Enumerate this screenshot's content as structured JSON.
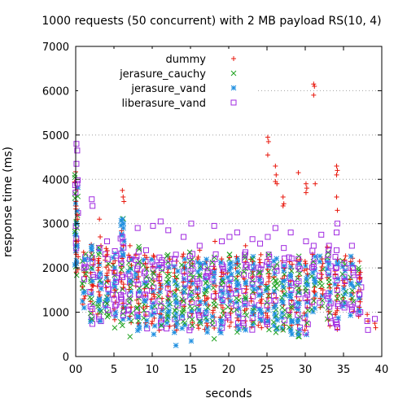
{
  "chart_data": {
    "type": "scatter",
    "title": "1000 requests (50 concurrent) with 2 MB payload RS(10, 4)",
    "xlabel": "seconds",
    "ylabel": "response time (ms)",
    "xlim": [
      0,
      40
    ],
    "ylim": [
      0,
      7000
    ],
    "x_ticks": [
      {
        "value": 0,
        "label": "00"
      },
      {
        "value": 5,
        "label": "5"
      },
      {
        "value": 10,
        "label": "10"
      },
      {
        "value": 15,
        "label": "15"
      },
      {
        "value": 20,
        "label": "20"
      },
      {
        "value": 25,
        "label": "25"
      },
      {
        "value": 30,
        "label": "30"
      },
      {
        "value": 35,
        "label": "35"
      },
      {
        "value": 40,
        "label": "40"
      }
    ],
    "y_ticks": [
      0,
      1000,
      2000,
      3000,
      4000,
      5000,
      6000,
      7000
    ],
    "grid": true,
    "legend_position": "top-right",
    "series": [
      {
        "name": "dummy",
        "marker": "plus",
        "color": "#e8170c",
        "points": [
          [
            0.1,
            2600
          ],
          [
            0.2,
            3200
          ],
          [
            1.1,
            1900
          ],
          [
            2.3,
            1600
          ],
          [
            2.3,
            2200
          ],
          [
            3.1,
            3100
          ],
          [
            3.2,
            2700
          ],
          [
            3.3,
            2500
          ],
          [
            4.1,
            2300
          ],
          [
            4.2,
            1700
          ],
          [
            5.1,
            1500
          ],
          [
            6.1,
            3750
          ],
          [
            6.2,
            3600
          ],
          [
            6.3,
            3500
          ],
          [
            6.2,
            1100
          ],
          [
            7.1,
            2500
          ],
          [
            8.2,
            1800
          ],
          [
            9.1,
            2100
          ],
          [
            10.2,
            1400
          ],
          [
            11.1,
            1600
          ],
          [
            12.3,
            2200
          ],
          [
            13.1,
            1500
          ],
          [
            14.2,
            2000
          ],
          [
            15.1,
            1700
          ],
          [
            16.2,
            2400
          ],
          [
            17.1,
            1300
          ],
          [
            18.2,
            2600
          ],
          [
            19.1,
            1900
          ],
          [
            20.2,
            1500
          ],
          [
            21.1,
            2100
          ],
          [
            22.2,
            2500
          ],
          [
            23.1,
            1800
          ],
          [
            24.2,
            2300
          ],
          [
            25.1,
            4950
          ],
          [
            25.2,
            4850
          ],
          [
            25.1,
            4550
          ],
          [
            26.1,
            4300
          ],
          [
            26.2,
            4100
          ],
          [
            26.1,
            3950
          ],
          [
            26.3,
            3900
          ],
          [
            27.1,
            3600
          ],
          [
            27.2,
            3450
          ],
          [
            27.1,
            3400
          ],
          [
            29.1,
            4150
          ],
          [
            30.1,
            3900
          ],
          [
            30.2,
            3800
          ],
          [
            30.1,
            3700
          ],
          [
            31.1,
            6150
          ],
          [
            31.2,
            6100
          ],
          [
            31.1,
            5900
          ],
          [
            31.3,
            3900
          ],
          [
            34.1,
            4300
          ],
          [
            34.2,
            4200
          ],
          [
            34.1,
            4100
          ],
          [
            34.1,
            3600
          ],
          [
            34.2,
            3300
          ],
          [
            37.1,
            2150
          ],
          [
            37.2,
            1900
          ],
          [
            37.1,
            1750
          ],
          [
            38.1,
            950
          ],
          [
            38.2,
            800
          ],
          [
            39.1,
            750
          ],
          [
            39.2,
            650
          ]
        ]
      },
      {
        "name": "jerasure_cauchy",
        "marker": "cross",
        "color": "#21a321",
        "points": [
          [
            2.1,
            850
          ],
          [
            3.2,
            1000
          ],
          [
            4.1,
            1200
          ],
          [
            5.1,
            650
          ],
          [
            6.1,
            700
          ],
          [
            7.1,
            450
          ],
          [
            7.2,
            1650
          ],
          [
            8.1,
            1100
          ],
          [
            9.2,
            1600
          ],
          [
            10.1,
            1900
          ],
          [
            11.2,
            700
          ],
          [
            12.1,
            1300
          ],
          [
            13.2,
            1800
          ],
          [
            14.1,
            1250
          ],
          [
            15.1,
            2050
          ],
          [
            16.2,
            800
          ],
          [
            17.1,
            1500
          ],
          [
            18.1,
            400
          ],
          [
            19.2,
            1700
          ],
          [
            20.1,
            2300
          ],
          [
            21.1,
            550
          ],
          [
            22.2,
            1300
          ],
          [
            23.1,
            2200
          ],
          [
            24.1,
            1900
          ],
          [
            25.1,
            1550
          ],
          [
            25.2,
            2300
          ],
          [
            26.2,
            1700
          ],
          [
            27.1,
            600
          ],
          [
            28.2,
            1100
          ],
          [
            29.1,
            1450
          ],
          [
            29.2,
            450
          ]
        ]
      },
      {
        "name": "jerasure_vand",
        "marker": "star",
        "color": "#1f8fe0",
        "points": [
          [
            0.1,
            3000
          ],
          [
            0.2,
            2500
          ],
          [
            0.1,
            2100
          ],
          [
            1.1,
            1100
          ],
          [
            1.2,
            2200
          ],
          [
            2.1,
            2500
          ],
          [
            2.2,
            1700
          ],
          [
            3.1,
            1300
          ],
          [
            3.2,
            800
          ],
          [
            4.2,
            1300
          ],
          [
            5.1,
            2000
          ],
          [
            6.1,
            3100
          ],
          [
            6.2,
            2300
          ],
          [
            7.1,
            1700
          ],
          [
            8.2,
            900
          ],
          [
            9.1,
            1250
          ],
          [
            10.2,
            500
          ],
          [
            11.1,
            900
          ],
          [
            12.1,
            1000
          ],
          [
            13.1,
            250
          ],
          [
            13.2,
            750
          ],
          [
            14.1,
            1450
          ],
          [
            15.1,
            350
          ],
          [
            16.1,
            1050
          ],
          [
            17.2,
            550
          ],
          [
            18.1,
            1900
          ],
          [
            19.1,
            800
          ],
          [
            20.2,
            1250
          ],
          [
            21.1,
            1600
          ],
          [
            22.2,
            600
          ],
          [
            23.1,
            1000
          ],
          [
            24.2,
            1400
          ],
          [
            25.1,
            800
          ],
          [
            26.1,
            1150
          ],
          [
            27.1,
            1700
          ],
          [
            28.2,
            800
          ],
          [
            29.1,
            500
          ],
          [
            29.2,
            1200
          ],
          [
            29.2,
            2100
          ]
        ]
      },
      {
        "name": "liberasure_vand",
        "marker": "square",
        "color": "#a12be0",
        "points": [
          [
            0.1,
            4800
          ],
          [
            0.2,
            4650
          ],
          [
            0.1,
            4350
          ],
          [
            0.2,
            3900
          ],
          [
            1.1,
            2000
          ],
          [
            2.1,
            3550
          ],
          [
            2.2,
            3400
          ],
          [
            3.1,
            2450
          ],
          [
            4.1,
            2600
          ],
          [
            5.1,
            1900
          ],
          [
            6.1,
            2700
          ],
          [
            7.1,
            2200
          ],
          [
            8.1,
            2900
          ],
          [
            9.2,
            2400
          ],
          [
            10.1,
            2950
          ],
          [
            11.1,
            3050
          ],
          [
            12.1,
            2850
          ],
          [
            13.1,
            2300
          ],
          [
            14.1,
            2700
          ],
          [
            15.1,
            3000
          ],
          [
            15.2,
            2100
          ],
          [
            16.2,
            2500
          ],
          [
            17.1,
            1800
          ],
          [
            18.1,
            2950
          ],
          [
            19.1,
            2600
          ],
          [
            20.1,
            2700
          ],
          [
            21.1,
            2800
          ],
          [
            22.1,
            2300
          ],
          [
            23.1,
            2650
          ],
          [
            24.1,
            2550
          ],
          [
            25.1,
            2700
          ],
          [
            26.1,
            2900
          ],
          [
            27.2,
            2450
          ],
          [
            28.1,
            2800
          ],
          [
            29.1,
            2200
          ],
          [
            30.1,
            2600
          ],
          [
            31.1,
            2500
          ],
          [
            32.1,
            2750
          ],
          [
            33.1,
            2500
          ],
          [
            34.1,
            2800
          ],
          [
            34.2,
            3000
          ],
          [
            34.1,
            2400
          ],
          [
            35.1,
            2100
          ],
          [
            35.2,
            1700
          ],
          [
            35.1,
            1200
          ],
          [
            36.1,
            1050
          ],
          [
            36.2,
            2000
          ],
          [
            36.1,
            2500
          ],
          [
            37.1,
            1400
          ],
          [
            37.2,
            1000
          ],
          [
            38.1,
            800
          ],
          [
            38.2,
            600
          ],
          [
            39.1,
            850
          ]
        ]
      }
    ],
    "dense_columns": [
      {
        "x": 0.1,
        "lo": 1850,
        "hi": 4200
      },
      {
        "x": 1.1,
        "lo": 1200,
        "hi": 2400
      },
      {
        "x": 2.1,
        "lo": 750,
        "hi": 2550
      },
      {
        "x": 3.1,
        "lo": 800,
        "hi": 2500
      },
      {
        "x": 4.1,
        "lo": 900,
        "hi": 2450
      },
      {
        "x": 5.1,
        "lo": 850,
        "hi": 2400
      },
      {
        "x": 6.1,
        "lo": 800,
        "hi": 3150
      },
      {
        "x": 7.1,
        "lo": 750,
        "hi": 2300
      },
      {
        "x": 8.1,
        "lo": 600,
        "hi": 2500
      },
      {
        "x": 9.1,
        "lo": 650,
        "hi": 2350
      },
      {
        "x": 10.1,
        "lo": 700,
        "hi": 2300
      },
      {
        "x": 11.1,
        "lo": 600,
        "hi": 2250
      },
      {
        "x": 12.1,
        "lo": 650,
        "hi": 2350
      },
      {
        "x": 13.1,
        "lo": 550,
        "hi": 2200
      },
      {
        "x": 14.1,
        "lo": 650,
        "hi": 2300
      },
      {
        "x": 15.1,
        "lo": 600,
        "hi": 2400
      },
      {
        "x": 16.1,
        "lo": 650,
        "hi": 2250
      },
      {
        "x": 17.1,
        "lo": 600,
        "hi": 2200
      },
      {
        "x": 18.1,
        "lo": 650,
        "hi": 2300
      },
      {
        "x": 19.1,
        "lo": 550,
        "hi": 2200
      },
      {
        "x": 20.1,
        "lo": 700,
        "hi": 2300
      },
      {
        "x": 21.1,
        "lo": 600,
        "hi": 2250
      },
      {
        "x": 22.1,
        "lo": 650,
        "hi": 2400
      },
      {
        "x": 23.1,
        "lo": 600,
        "hi": 2250
      },
      {
        "x": 24.1,
        "lo": 650,
        "hi": 2200
      },
      {
        "x": 25.1,
        "lo": 600,
        "hi": 2350
      },
      {
        "x": 26.1,
        "lo": 550,
        "hi": 2250
      },
      {
        "x": 27.1,
        "lo": 600,
        "hi": 2200
      },
      {
        "x": 28.1,
        "lo": 500,
        "hi": 2300
      },
      {
        "x": 29.1,
        "lo": 450,
        "hi": 2300
      },
      {
        "x": 30.1,
        "lo": 500,
        "hi": 2150
      },
      {
        "x": 31.1,
        "lo": 1000,
        "hi": 2400
      },
      {
        "x": 32.1,
        "lo": 1100,
        "hi": 2300
      },
      {
        "x": 33.1,
        "lo": 700,
        "hi": 2500
      },
      {
        "x": 34.1,
        "lo": 600,
        "hi": 2300
      },
      {
        "x": 35.1,
        "lo": 1100,
        "hi": 2300
      },
      {
        "x": 36.1,
        "lo": 950,
        "hi": 2300
      },
      {
        "x": 37.1,
        "lo": 900,
        "hi": 2000
      }
    ]
  }
}
